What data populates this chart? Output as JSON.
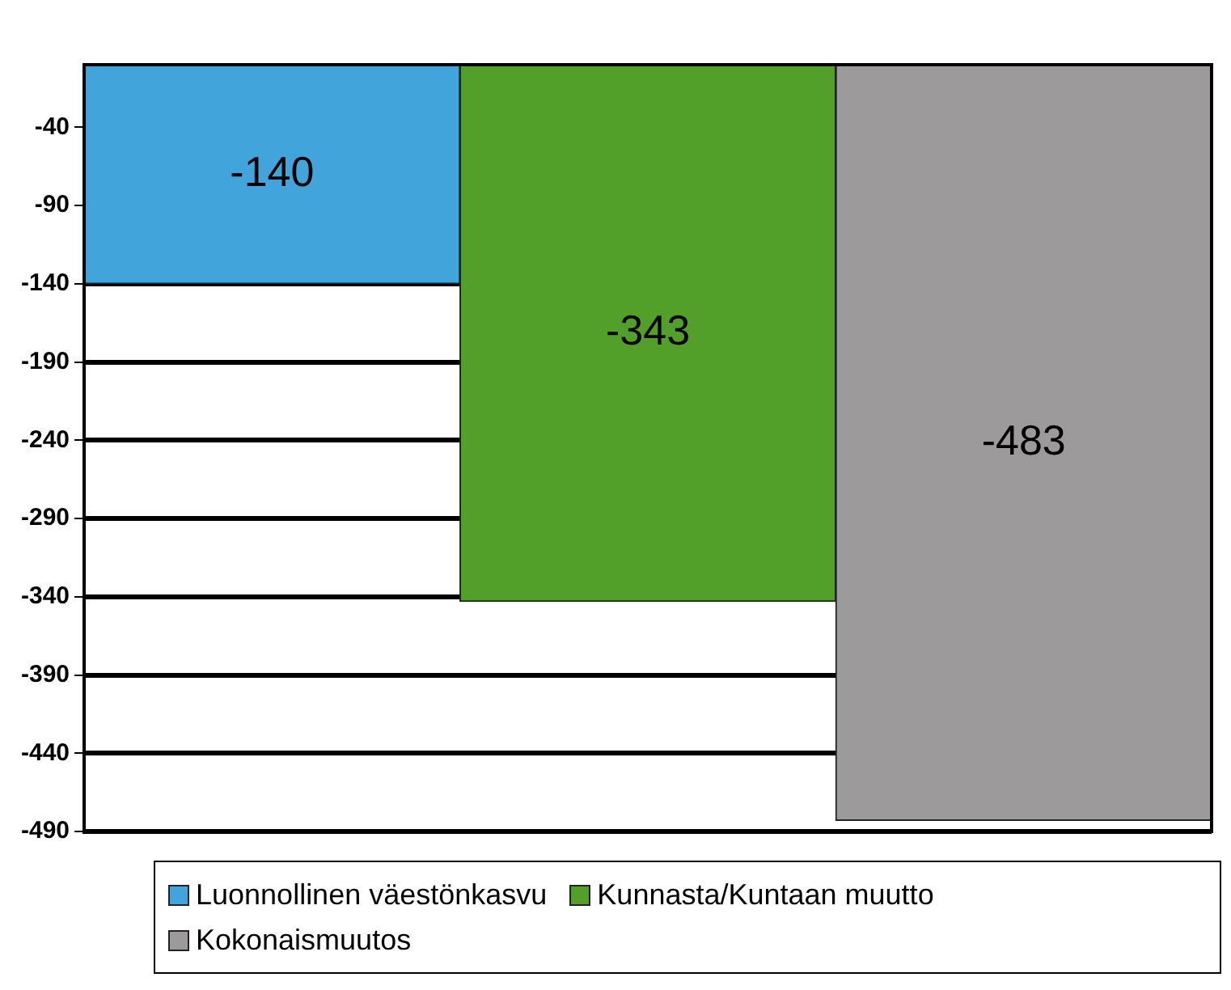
{
  "chart_data": {
    "type": "bar",
    "stacked": true,
    "categories": [
      null,
      null,
      null
    ],
    "series": [
      {
        "name": "Luonnollinen väestönkasvu",
        "color": "#41a5dc",
        "values": [
          -140,
          null,
          null
        ]
      },
      {
        "name": "Kunnasta/Kuntaan muutto",
        "color": "#52a02a",
        "values": [
          null,
          -343,
          null
        ]
      },
      {
        "name": "Kokonaismuutos",
        "color": "#9c9a9b",
        "values": [
          null,
          null,
          -483
        ]
      }
    ],
    "ylim": [
      -490,
      0
    ],
    "yticks": [
      -40,
      -90,
      -140,
      -190,
      -240,
      -290,
      -340,
      -390,
      -440,
      -490
    ],
    "grid": "y",
    "legend": "bottom",
    "data_labels": true
  }
}
